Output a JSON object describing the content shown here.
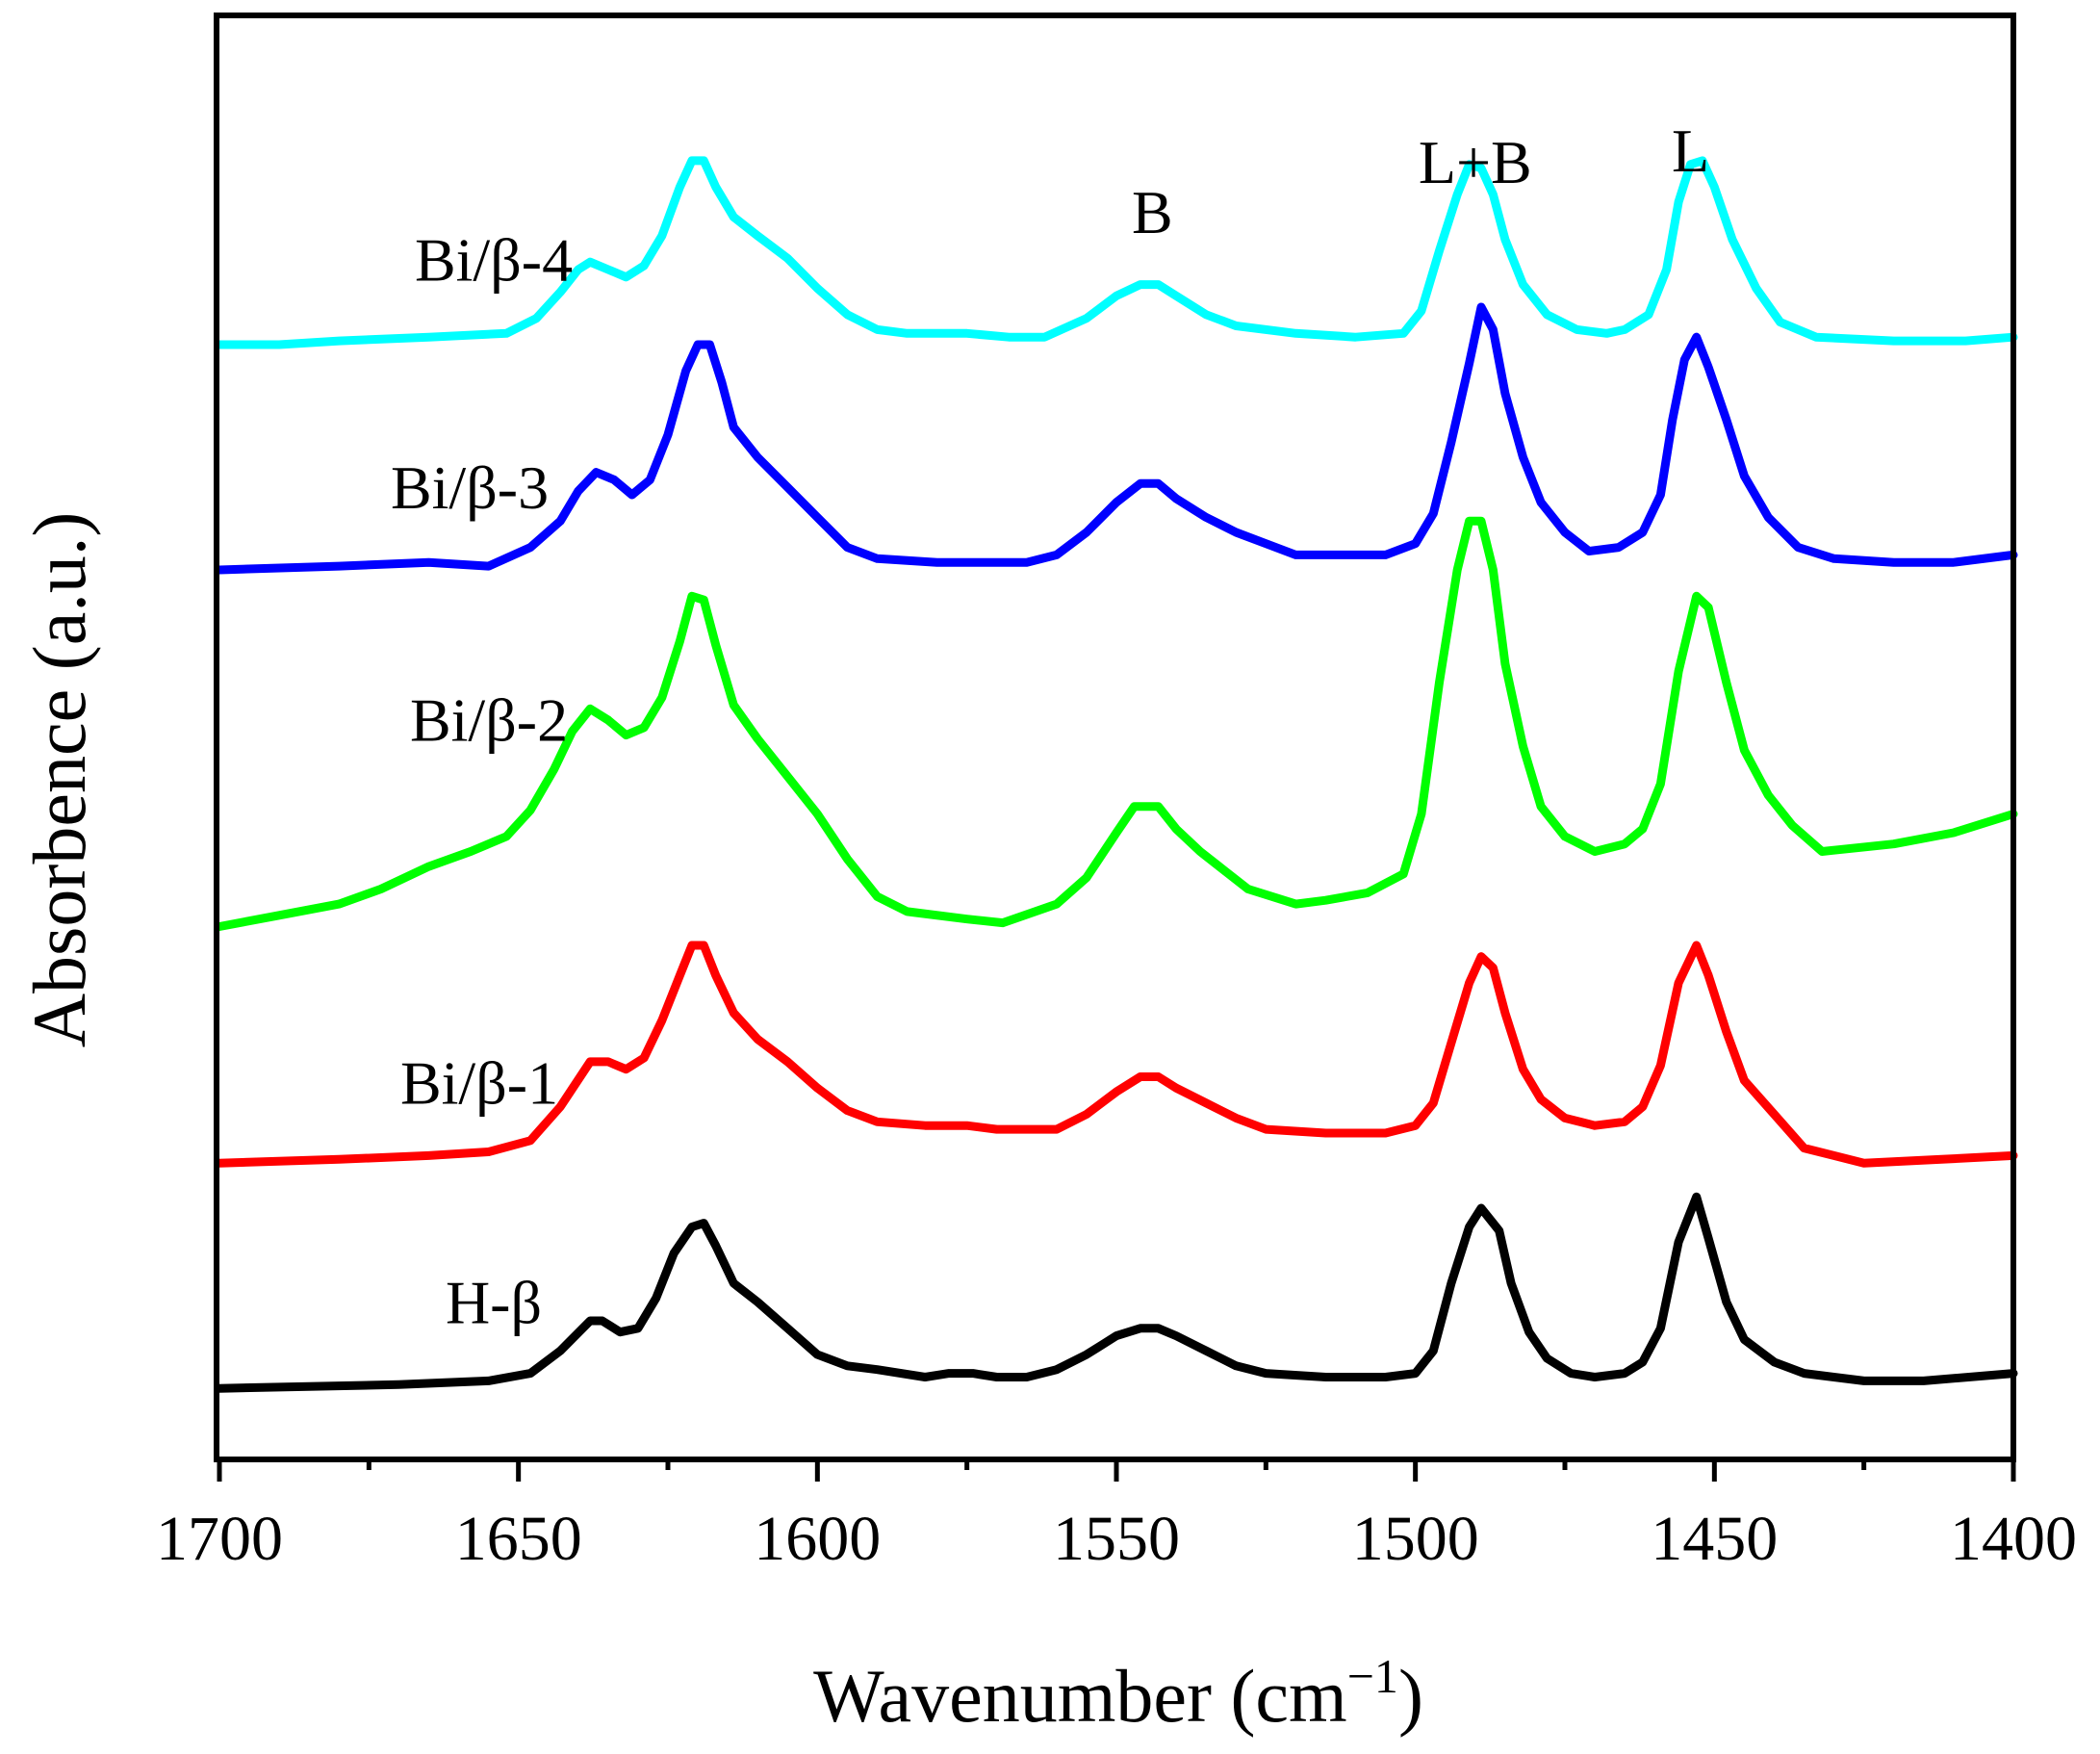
{
  "chart_data": {
    "type": "line",
    "xlabel": "Wavenumber (cm",
    "xlabel_sup": "−1",
    "xlabel_close": ")",
    "ylabel": "Absorbence (a.u.)",
    "xlim": [
      1700,
      1400
    ],
    "x_ticks": [
      1700,
      1650,
      1600,
      1550,
      1500,
      1450,
      1400
    ],
    "x_tick_labels": [
      "1700",
      "1650",
      "1600",
      "1550",
      "1500",
      "1450",
      "1400"
    ],
    "x_minor_step": 25,
    "y_ticks_shown": false,
    "grid": false,
    "annotations": [
      {
        "text": "B",
        "x": 1544
      },
      {
        "text": "L+B",
        "x": 1490
      },
      {
        "text": "L",
        "x": 1454
      }
    ],
    "series": [
      {
        "name": "H-β",
        "color": "#000000",
        "offset": 0,
        "points": [
          [
            1700,
            0.02
          ],
          [
            1670,
            0.03
          ],
          [
            1655,
            0.04
          ],
          [
            1648,
            0.06
          ],
          [
            1643,
            0.12
          ],
          [
            1638,
            0.2
          ],
          [
            1636,
            0.2
          ],
          [
            1633,
            0.17
          ],
          [
            1630,
            0.18
          ],
          [
            1627,
            0.26
          ],
          [
            1624,
            0.38
          ],
          [
            1621,
            0.45
          ],
          [
            1619,
            0.46
          ],
          [
            1617,
            0.4
          ],
          [
            1614,
            0.3
          ],
          [
            1610,
            0.25
          ],
          [
            1605,
            0.18
          ],
          [
            1600,
            0.11
          ],
          [
            1595,
            0.08
          ],
          [
            1590,
            0.07
          ],
          [
            1582,
            0.05
          ],
          [
            1578,
            0.06
          ],
          [
            1574,
            0.06
          ],
          [
            1570,
            0.05
          ],
          [
            1565,
            0.05
          ],
          [
            1560,
            0.07
          ],
          [
            1555,
            0.11
          ],
          [
            1550,
            0.16
          ],
          [
            1546,
            0.18
          ],
          [
            1543,
            0.18
          ],
          [
            1540,
            0.16
          ],
          [
            1535,
            0.12
          ],
          [
            1530,
            0.08
          ],
          [
            1525,
            0.06
          ],
          [
            1515,
            0.05
          ],
          [
            1505,
            0.05
          ],
          [
            1500,
            0.06
          ],
          [
            1497,
            0.12
          ],
          [
            1494,
            0.3
          ],
          [
            1491,
            0.45
          ],
          [
            1489,
            0.5
          ],
          [
            1486,
            0.44
          ],
          [
            1484,
            0.3
          ],
          [
            1481,
            0.17
          ],
          [
            1478,
            0.1
          ],
          [
            1474,
            0.06
          ],
          [
            1470,
            0.05
          ],
          [
            1465,
            0.06
          ],
          [
            1462,
            0.09
          ],
          [
            1459,
            0.18
          ],
          [
            1456,
            0.41
          ],
          [
            1453,
            0.53
          ],
          [
            1451,
            0.42
          ],
          [
            1448,
            0.25
          ],
          [
            1445,
            0.15
          ],
          [
            1440,
            0.09
          ],
          [
            1435,
            0.06
          ],
          [
            1425,
            0.04
          ],
          [
            1415,
            0.04
          ],
          [
            1400,
            0.06
          ]
        ]
      },
      {
        "name": "Bi/β-1",
        "color": "#ff0000",
        "offset": 0.62,
        "points": [
          [
            1700,
            0.0
          ],
          [
            1680,
            0.01
          ],
          [
            1665,
            0.02
          ],
          [
            1655,
            0.03
          ],
          [
            1648,
            0.06
          ],
          [
            1643,
            0.15
          ],
          [
            1638,
            0.27
          ],
          [
            1635,
            0.27
          ],
          [
            1632,
            0.25
          ],
          [
            1629,
            0.28
          ],
          [
            1626,
            0.38
          ],
          [
            1623,
            0.5
          ],
          [
            1621,
            0.58
          ],
          [
            1619,
            0.58
          ],
          [
            1617,
            0.5
          ],
          [
            1614,
            0.4
          ],
          [
            1610,
            0.33
          ],
          [
            1605,
            0.27
          ],
          [
            1600,
            0.2
          ],
          [
            1595,
            0.14
          ],
          [
            1590,
            0.11
          ],
          [
            1582,
            0.1
          ],
          [
            1575,
            0.1
          ],
          [
            1570,
            0.09
          ],
          [
            1560,
            0.09
          ],
          [
            1555,
            0.13
          ],
          [
            1550,
            0.19
          ],
          [
            1546,
            0.23
          ],
          [
            1543,
            0.23
          ],
          [
            1540,
            0.2
          ],
          [
            1535,
            0.16
          ],
          [
            1530,
            0.12
          ],
          [
            1525,
            0.09
          ],
          [
            1515,
            0.08
          ],
          [
            1505,
            0.08
          ],
          [
            1500,
            0.1
          ],
          [
            1497,
            0.16
          ],
          [
            1494,
            0.32
          ],
          [
            1491,
            0.48
          ],
          [
            1489,
            0.55
          ],
          [
            1487,
            0.52
          ],
          [
            1485,
            0.4
          ],
          [
            1482,
            0.25
          ],
          [
            1479,
            0.17
          ],
          [
            1475,
            0.12
          ],
          [
            1470,
            0.1
          ],
          [
            1465,
            0.11
          ],
          [
            1462,
            0.15
          ],
          [
            1459,
            0.26
          ],
          [
            1456,
            0.48
          ],
          [
            1453,
            0.58
          ],
          [
            1451,
            0.5
          ],
          [
            1448,
            0.35
          ],
          [
            1445,
            0.22
          ],
          [
            1440,
            0.13
          ],
          [
            1435,
            0.04
          ],
          [
            1425,
            0.0
          ],
          [
            1412,
            0.01
          ],
          [
            1400,
            0.02
          ]
        ]
      },
      {
        "name": "Bi/β-2",
        "color": "#00ff00",
        "offset": 1.25,
        "points": [
          [
            1700,
            0.0
          ],
          [
            1690,
            0.03
          ],
          [
            1680,
            0.06
          ],
          [
            1673,
            0.1
          ],
          [
            1665,
            0.16
          ],
          [
            1658,
            0.2
          ],
          [
            1652,
            0.24
          ],
          [
            1648,
            0.31
          ],
          [
            1644,
            0.42
          ],
          [
            1641,
            0.52
          ],
          [
            1638,
            0.58
          ],
          [
            1635,
            0.55
          ],
          [
            1632,
            0.51
          ],
          [
            1629,
            0.53
          ],
          [
            1626,
            0.61
          ],
          [
            1623,
            0.76
          ],
          [
            1621,
            0.88
          ],
          [
            1619,
            0.87
          ],
          [
            1617,
            0.75
          ],
          [
            1614,
            0.59
          ],
          [
            1610,
            0.5
          ],
          [
            1605,
            0.4
          ],
          [
            1600,
            0.3
          ],
          [
            1595,
            0.18
          ],
          [
            1590,
            0.08
          ],
          [
            1585,
            0.04
          ],
          [
            1575,
            0.02
          ],
          [
            1569,
            0.01
          ],
          [
            1560,
            0.06
          ],
          [
            1555,
            0.13
          ],
          [
            1550,
            0.25
          ],
          [
            1547,
            0.32
          ],
          [
            1543,
            0.32
          ],
          [
            1540,
            0.26
          ],
          [
            1536,
            0.2
          ],
          [
            1532,
            0.15
          ],
          [
            1528,
            0.1
          ],
          [
            1520,
            0.06
          ],
          [
            1515,
            0.07
          ],
          [
            1508,
            0.09
          ],
          [
            1502,
            0.14
          ],
          [
            1499,
            0.3
          ],
          [
            1496,
            0.65
          ],
          [
            1493,
            0.95
          ],
          [
            1491,
            1.08
          ],
          [
            1489,
            1.08
          ],
          [
            1487,
            0.95
          ],
          [
            1485,
            0.7
          ],
          [
            1482,
            0.48
          ],
          [
            1479,
            0.32
          ],
          [
            1475,
            0.24
          ],
          [
            1470,
            0.2
          ],
          [
            1465,
            0.22
          ],
          [
            1462,
            0.26
          ],
          [
            1459,
            0.38
          ],
          [
            1456,
            0.68
          ],
          [
            1453,
            0.88
          ],
          [
            1451,
            0.85
          ],
          [
            1448,
            0.65
          ],
          [
            1445,
            0.47
          ],
          [
            1441,
            0.35
          ],
          [
            1437,
            0.27
          ],
          [
            1432,
            0.2
          ],
          [
            1420,
            0.22
          ],
          [
            1410,
            0.25
          ],
          [
            1400,
            0.3
          ]
        ]
      },
      {
        "name": "Bi/β-3",
        "color": "#0000ff",
        "offset": 2.2,
        "points": [
          [
            1700,
            0.0
          ],
          [
            1680,
            0.01
          ],
          [
            1665,
            0.02
          ],
          [
            1655,
            0.01
          ],
          [
            1648,
            0.06
          ],
          [
            1643,
            0.13
          ],
          [
            1640,
            0.21
          ],
          [
            1637,
            0.26
          ],
          [
            1634,
            0.24
          ],
          [
            1631,
            0.2
          ],
          [
            1628,
            0.24
          ],
          [
            1625,
            0.36
          ],
          [
            1622,
            0.53
          ],
          [
            1620,
            0.6
          ],
          [
            1618,
            0.6
          ],
          [
            1616,
            0.5
          ],
          [
            1614,
            0.38
          ],
          [
            1610,
            0.3
          ],
          [
            1605,
            0.22
          ],
          [
            1600,
            0.14
          ],
          [
            1595,
            0.06
          ],
          [
            1590,
            0.03
          ],
          [
            1580,
            0.02
          ],
          [
            1570,
            0.02
          ],
          [
            1565,
            0.02
          ],
          [
            1560,
            0.04
          ],
          [
            1555,
            0.1
          ],
          [
            1550,
            0.18
          ],
          [
            1546,
            0.23
          ],
          [
            1543,
            0.23
          ],
          [
            1540,
            0.19
          ],
          [
            1535,
            0.14
          ],
          [
            1530,
            0.1
          ],
          [
            1525,
            0.07
          ],
          [
            1520,
            0.04
          ],
          [
            1515,
            0.04
          ],
          [
            1505,
            0.04
          ],
          [
            1500,
            0.07
          ],
          [
            1497,
            0.15
          ],
          [
            1494,
            0.34
          ],
          [
            1491,
            0.55
          ],
          [
            1489,
            0.7
          ],
          [
            1487,
            0.64
          ],
          [
            1485,
            0.47
          ],
          [
            1482,
            0.3
          ],
          [
            1479,
            0.18
          ],
          [
            1475,
            0.1
          ],
          [
            1471,
            0.05
          ],
          [
            1466,
            0.06
          ],
          [
            1462,
            0.1
          ],
          [
            1459,
            0.2
          ],
          [
            1457,
            0.4
          ],
          [
            1455,
            0.56
          ],
          [
            1453,
            0.62
          ],
          [
            1451,
            0.54
          ],
          [
            1448,
            0.4
          ],
          [
            1445,
            0.25
          ],
          [
            1441,
            0.14
          ],
          [
            1436,
            0.06
          ],
          [
            1430,
            0.03
          ],
          [
            1420,
            0.02
          ],
          [
            1410,
            0.02
          ],
          [
            1400,
            0.04
          ]
        ]
      },
      {
        "name": "Bi/β-4",
        "color": "#00ffff",
        "offset": 2.8,
        "points": [
          [
            1700,
            0.0
          ],
          [
            1690,
            0.0
          ],
          [
            1680,
            0.01
          ],
          [
            1665,
            0.02
          ],
          [
            1652,
            0.03
          ],
          [
            1647,
            0.07
          ],
          [
            1643,
            0.14
          ],
          [
            1640,
            0.2
          ],
          [
            1638,
            0.22
          ],
          [
            1635,
            0.2
          ],
          [
            1632,
            0.18
          ],
          [
            1629,
            0.21
          ],
          [
            1626,
            0.29
          ],
          [
            1623,
            0.42
          ],
          [
            1621,
            0.49
          ],
          [
            1619,
            0.49
          ],
          [
            1617,
            0.42
          ],
          [
            1614,
            0.34
          ],
          [
            1610,
            0.29
          ],
          [
            1605,
            0.23
          ],
          [
            1600,
            0.15
          ],
          [
            1595,
            0.08
          ],
          [
            1590,
            0.04
          ],
          [
            1585,
            0.03
          ],
          [
            1575,
            0.03
          ],
          [
            1568,
            0.02
          ],
          [
            1562,
            0.02
          ],
          [
            1555,
            0.07
          ],
          [
            1550,
            0.13
          ],
          [
            1546,
            0.16
          ],
          [
            1543,
            0.16
          ],
          [
            1540,
            0.13
          ],
          [
            1535,
            0.08
          ],
          [
            1530,
            0.05
          ],
          [
            1520,
            0.03
          ],
          [
            1510,
            0.02
          ],
          [
            1502,
            0.03
          ],
          [
            1499,
            0.09
          ],
          [
            1496,
            0.25
          ],
          [
            1493,
            0.4
          ],
          [
            1491,
            0.48
          ],
          [
            1489,
            0.47
          ],
          [
            1487,
            0.4
          ],
          [
            1485,
            0.28
          ],
          [
            1482,
            0.16
          ],
          [
            1478,
            0.08
          ],
          [
            1473,
            0.04
          ],
          [
            1468,
            0.03
          ],
          [
            1465,
            0.04
          ],
          [
            1461,
            0.08
          ],
          [
            1458,
            0.2
          ],
          [
            1456,
            0.38
          ],
          [
            1454,
            0.48
          ],
          [
            1452,
            0.49
          ],
          [
            1450,
            0.42
          ],
          [
            1447,
            0.28
          ],
          [
            1443,
            0.15
          ],
          [
            1439,
            0.06
          ],
          [
            1433,
            0.02
          ],
          [
            1420,
            0.01
          ],
          [
            1408,
            0.01
          ],
          [
            1400,
            0.02
          ]
        ]
      }
    ]
  }
}
